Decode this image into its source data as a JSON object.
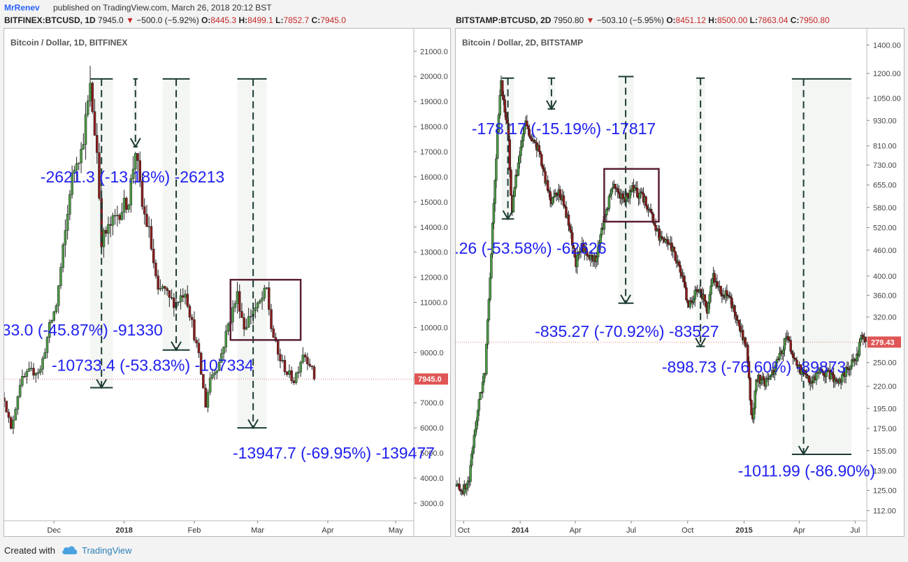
{
  "header": {
    "author": "MrRenev",
    "published": "published on TradingView.com, March 26, 2018 20:12 BST"
  },
  "footer": {
    "created_with": "Created with",
    "brand": "TradingView",
    "icon": "tradingview-cloud-icon"
  },
  "colors": {
    "up": "#4c9a47",
    "down": "#8b1c1c",
    "wick": "#222222",
    "text_blue": "#1f1ff0",
    "box": "#5a1f35",
    "arrow": "#1d3b35",
    "price_tag": "#e05555"
  },
  "chart_data": [
    {
      "type": "candlestick",
      "legend": {
        "symbol": "BITFINEX:BTCUSD, 1D",
        "last": "7945.0",
        "change": "−500.0 (−5.92%)",
        "o_label": "O:",
        "o": "8445.3",
        "h_label": "H:",
        "h": "8499.1",
        "l_label": "L:",
        "l": "7852.7",
        "c_label": "C:",
        "c": "7945.0"
      },
      "title": "Bitcoin / Dollar, 1D, BITFINEX",
      "y_ticks": [
        3000,
        4000,
        5000,
        6000,
        7000,
        8000,
        9000,
        10000,
        11000,
        12000,
        13000,
        14000,
        15000,
        16000,
        17000,
        18000,
        19000,
        20000,
        21000
      ],
      "y_tick_labels": [
        "3000.0",
        "4000.0",
        "5000.0",
        "6000.0",
        "7000.0",
        "8000.0",
        "9000.0",
        "10000.0",
        "11000.0",
        "12000.0",
        "13000.0",
        "14000.0",
        "15000.0",
        "16000.0",
        "17000.0",
        "18000.0",
        "19000.0",
        "20000.0",
        "21000.0"
      ],
      "ylim": [
        2300,
        21900
      ],
      "x_range": [
        "2017-11-09",
        "2018-05-09"
      ],
      "x_ticks": [
        {
          "date": "2017-12-01",
          "label": "Dec",
          "bold": false
        },
        {
          "date": "2018-01-01",
          "label": "2018",
          "bold": true
        },
        {
          "date": "2018-02-01",
          "label": "Feb",
          "bold": false
        },
        {
          "date": "2018-03-01",
          "label": "Mar",
          "bold": false
        },
        {
          "date": "2018-04-01",
          "label": "Apr",
          "bold": false
        },
        {
          "date": "2018-05-01",
          "label": "May",
          "bold": false
        }
      ],
      "price_tag": {
        "value": 7945.0,
        "label": "7945.0"
      },
      "path": [
        [
          "2017-11-09",
          7200
        ],
        [
          "2017-11-12",
          5900
        ],
        [
          "2017-11-16",
          7800
        ],
        [
          "2017-11-20",
          8200
        ],
        [
          "2017-11-25",
          8300
        ],
        [
          "2017-11-29",
          10000
        ],
        [
          "2017-12-02",
          10900
        ],
        [
          "2017-12-07",
          14500
        ],
        [
          "2017-12-08",
          15500
        ],
        [
          "2017-12-11",
          16800
        ],
        [
          "2017-12-13",
          17000
        ],
        [
          "2017-12-17",
          19500
        ],
        [
          "2017-12-20",
          17000
        ],
        [
          "2017-12-22",
          13500
        ],
        [
          "2017-12-25",
          13900
        ],
        [
          "2017-12-29",
          14500
        ],
        [
          "2018-01-03",
          15100
        ],
        [
          "2018-01-06",
          17100
        ],
        [
          "2018-01-09",
          14800
        ],
        [
          "2018-01-12",
          13800
        ],
        [
          "2018-01-16",
          11300
        ],
        [
          "2018-01-18",
          11600
        ],
        [
          "2018-01-21",
          11100
        ],
        [
          "2018-01-24",
          11000
        ],
        [
          "2018-01-28",
          11500
        ],
        [
          "2018-02-01",
          9700
        ],
        [
          "2018-02-03",
          8800
        ],
        [
          "2018-02-06",
          6900
        ],
        [
          "2018-02-08",
          8000
        ],
        [
          "2018-02-12",
          8600
        ],
        [
          "2018-02-16",
          10100
        ],
        [
          "2018-02-20",
          11300
        ],
        [
          "2018-02-23",
          10000
        ],
        [
          "2018-02-27",
          10700
        ],
        [
          "2018-03-01",
          10800
        ],
        [
          "2018-03-05",
          11500
        ],
        [
          "2018-03-07",
          10000
        ],
        [
          "2018-03-10",
          8900
        ],
        [
          "2018-03-14",
          8200
        ],
        [
          "2018-03-17",
          7900
        ],
        [
          "2018-03-19",
          8400
        ],
        [
          "2018-03-21",
          9000
        ],
        [
          "2018-03-24",
          8600
        ],
        [
          "2018-03-26",
          7945
        ]
      ],
      "measures": [
        {
          "start": "2017-12-17",
          "end": "2017-12-27",
          "top": 19900,
          "bottom": 7600,
          "arrow_x": "2017-12-22",
          "arrow_to": 7600,
          "label": "-2621.3 (-13.18%) -26213",
          "lx": "2017-11-25",
          "lv": 16000
        },
        {
          "start": "2018-01-05",
          "end": "2018-01-07",
          "top": 19900,
          "bottom": 17200,
          "arrow_x": "2018-01-06",
          "arrow_to": 17200,
          "label": "",
          "lx": "2018-01-06",
          "lv": 0
        },
        {
          "start": "2018-01-18",
          "end": "2018-01-30",
          "top": 19900,
          "bottom": 9100,
          "arrow_x": "2018-01-24",
          "arrow_to": 9100,
          "label": ".33.0 (-45.87%) -91330",
          "lx": "2017-11-06",
          "lv": 9900
        },
        {
          "start": "2018-02-20",
          "end": "2018-03-05",
          "top": 19900,
          "bottom": 6000,
          "arrow_x": "2018-02-27",
          "arrow_to": 6000,
          "label": "-10733.4 (-53.83%) -107334",
          "lx": "2017-11-30",
          "lv": 8500
        },
        {
          "start": "",
          "end": "",
          "top": 0,
          "bottom": 0,
          "arrow_x": "",
          "arrow_to": 0,
          "label": "-13947.7 (-69.95%) -139477",
          "lx": "2018-02-18",
          "lv": 5000
        }
      ],
      "box": {
        "x0": "2018-02-17",
        "x1": "2018-03-20",
        "top": 11900,
        "bottom": 9500
      }
    },
    {
      "type": "candlestick",
      "legend": {
        "symbol": "BITSTAMP:BTCUSD, 2D",
        "last": "7950.80",
        "change": "−503.10 (−5.95%)",
        "o_label": "O:",
        "o": "8451.12",
        "h_label": "H:",
        "h": "8500.00",
        "l_label": "L:",
        "l": "7863.04",
        "c_label": "C:",
        "c": "7950.80"
      },
      "title": "Bitcoin / Dollar, 2D, BITSTAMP",
      "y_ticks": [
        112,
        125,
        139,
        155,
        175,
        195,
        220,
        250,
        280,
        320,
        360,
        400,
        460,
        520,
        580,
        655,
        730,
        810,
        930,
        1050,
        1200,
        1400
      ],
      "y_tick_labels": [
        "112.00",
        "125.00",
        "139.00",
        "155.00",
        "175.00",
        "195.00",
        "220.00",
        "250.00",
        "280.00",
        "320.00",
        "360.00",
        "400.00",
        "460.00",
        "520.00",
        "580.00",
        "655.00",
        "730.00",
        "810.00",
        "930.00",
        "1050.00",
        "1200.00",
        "1400.00"
      ],
      "ylim": [
        106,
        1530
      ],
      "log": true,
      "x_range": [
        "2013-09-18",
        "2015-07-20"
      ],
      "x_ticks": [
        {
          "date": "2013-10-01",
          "label": "Oct",
          "bold": false
        },
        {
          "date": "2014-01-01",
          "label": "2014",
          "bold": true
        },
        {
          "date": "2014-04-01",
          "label": "Apr",
          "bold": false
        },
        {
          "date": "2014-07-01",
          "label": "Jul",
          "bold": false
        },
        {
          "date": "2014-10-01",
          "label": "Oct",
          "bold": false
        },
        {
          "date": "2015-01-01",
          "label": "2015",
          "bold": true
        },
        {
          "date": "2015-04-01",
          "label": "Apr",
          "bold": false
        },
        {
          "date": "2015-07-01",
          "label": "Jul",
          "bold": false
        }
      ],
      "price_tag": {
        "value": 279.43,
        "label": "279.43"
      },
      "path": [
        [
          "2013-09-18",
          128
        ],
        [
          "2013-10-01",
          125
        ],
        [
          "2013-10-10",
          132
        ],
        [
          "2013-10-22",
          185
        ],
        [
          "2013-11-05",
          240
        ],
        [
          "2013-11-14",
          420
        ],
        [
          "2013-11-20",
          640
        ],
        [
          "2013-11-26",
          900
        ],
        [
          "2013-12-01",
          1150
        ],
        [
          "2013-12-06",
          1000
        ],
        [
          "2013-12-12",
          880
        ],
        [
          "2013-12-18",
          560
        ],
        [
          "2013-12-24",
          660
        ],
        [
          "2014-01-02",
          800
        ],
        [
          "2014-01-10",
          920
        ],
        [
          "2014-01-20",
          830
        ],
        [
          "2014-01-30",
          800
        ],
        [
          "2014-02-10",
          680
        ],
        [
          "2014-02-20",
          600
        ],
        [
          "2014-03-02",
          640
        ],
        [
          "2014-03-12",
          600
        ],
        [
          "2014-03-22",
          520
        ],
        [
          "2014-04-02",
          430
        ],
        [
          "2014-04-12",
          470
        ],
        [
          "2014-04-22",
          440
        ],
        [
          "2014-05-05",
          440
        ],
        [
          "2014-05-20",
          560
        ],
        [
          "2014-06-02",
          660
        ],
        [
          "2014-06-10",
          630
        ],
        [
          "2014-06-20",
          600
        ],
        [
          "2014-07-01",
          640
        ],
        [
          "2014-07-10",
          630
        ],
        [
          "2014-07-20",
          610
        ],
        [
          "2014-07-30",
          580
        ],
        [
          "2014-08-10",
          520
        ],
        [
          "2014-08-20",
          480
        ],
        [
          "2014-09-01",
          480
        ],
        [
          "2014-09-12",
          440
        ],
        [
          "2014-09-22",
          400
        ],
        [
          "2014-10-01",
          340
        ],
        [
          "2014-10-08",
          350
        ],
        [
          "2014-10-20",
          380
        ],
        [
          "2014-11-02",
          330
        ],
        [
          "2014-11-12",
          400
        ],
        [
          "2014-11-22",
          370
        ],
        [
          "2014-12-05",
          360
        ],
        [
          "2014-12-20",
          320
        ],
        [
          "2015-01-05",
          270
        ],
        [
          "2015-01-14",
          175
        ],
        [
          "2015-01-22",
          230
        ],
        [
          "2015-02-05",
          225
        ],
        [
          "2015-02-18",
          240
        ],
        [
          "2015-03-05",
          270
        ],
        [
          "2015-03-12",
          290
        ],
        [
          "2015-03-25",
          250
        ],
        [
          "2015-04-08",
          235
        ],
        [
          "2015-04-22",
          225
        ],
        [
          "2015-05-05",
          238
        ],
        [
          "2015-05-20",
          235
        ],
        [
          "2015-06-05",
          225
        ],
        [
          "2015-06-20",
          245
        ],
        [
          "2015-07-05",
          260
        ],
        [
          "2015-07-12",
          290
        ],
        [
          "2015-07-18",
          280
        ]
      ],
      "measures": [
        {
          "start": "2013-12-02",
          "end": "2013-12-22",
          "top": 1170,
          "bottom": 545,
          "arrow_x": "2013-12-12",
          "arrow_to": 545,
          "label": "-178.17 (-15.19%) -17817",
          "lx": "2013-10-14",
          "lv": 890
        },
        {
          "start": "2014-02-15",
          "end": "2014-02-27",
          "top": 1170,
          "bottom": 990,
          "arrow_x": "2014-02-21",
          "arrow_to": 990,
          "label": "",
          "lx": "2014-02-21",
          "lv": 0
        },
        {
          "start": "2014-06-10",
          "end": "2014-07-05",
          "top": 1180,
          "bottom": 345,
          "arrow_x": "2014-06-22",
          "arrow_to": 345,
          "label": "",
          ".26 (-53.58%) -62626": "",
          "lx": "2014-06-22",
          "lv": 0
        },
        {
          "start": "2014-10-15",
          "end": "2014-10-29",
          "top": 1170,
          "bottom": 273,
          "arrow_x": "2014-10-22",
          "arrow_to": 273,
          "label": "-835.27 (-70.92%) -83527",
          "lx": "2014-01-25",
          "lv": 296
        },
        {
          "start": "2015-03-20",
          "end": "2015-06-25",
          "top": 1165,
          "bottom": 152,
          "arrow_x": "2015-04-08",
          "arrow_to": 152,
          "label": "-898.73 (-76.60%) -89873",
          "lx": "2014-08-20",
          "lv": 244
        },
        {
          "start": "",
          "end": "",
          "top": 0,
          "bottom": 0,
          "arrow_x": "",
          "arrow_to": 0,
          "label": ".26 (-53.58%) -62626",
          "lx": "2013-09-16",
          "lv": 465
        },
        {
          "start": "",
          "end": "",
          "top": 0,
          "bottom": 0,
          "arrow_x": "",
          "arrow_to": 0,
          "label": "-1011.99 (-86.90%)",
          "lx": "2014-12-22",
          "lv": 139
        }
      ],
      "box": {
        "x0": "2014-05-18",
        "x1": "2014-08-15",
        "top": 715,
        "bottom": 537
      }
    }
  ]
}
